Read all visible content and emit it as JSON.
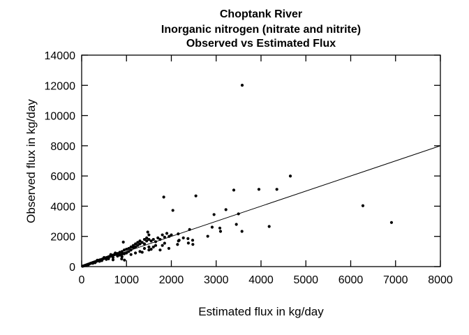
{
  "chart_data": {
    "type": "scatter",
    "title": [
      "Choptank River",
      "Inorganic nitrogen (nitrate and nitrite)",
      "Observed vs Estimated Flux"
    ],
    "xlabel": "Estimated flux in kg/day",
    "ylabel": "Observed flux in kg/day",
    "xlim": [
      0,
      8000
    ],
    "ylim": [
      0,
      14000
    ],
    "xticks": [
      "0",
      "1000",
      "2000",
      "3000",
      "4000",
      "5000",
      "6000",
      "7000",
      "8000"
    ],
    "yticks": [
      "0",
      "2000",
      "4000",
      "6000",
      "8000",
      "10000",
      "12000",
      "14000"
    ],
    "grid": false,
    "point_color": "#000000",
    "reference_line": {
      "x": [
        0,
        8000
      ],
      "y": [
        0,
        8000
      ]
    },
    "points": [
      [
        20,
        25
      ],
      [
        40,
        45
      ],
      [
        60,
        60
      ],
      [
        80,
        90
      ],
      [
        100,
        105
      ],
      [
        120,
        130
      ],
      [
        140,
        150
      ],
      [
        160,
        170
      ],
      [
        180,
        190
      ],
      [
        200,
        220
      ],
      [
        220,
        230
      ],
      [
        240,
        260
      ],
      [
        260,
        280
      ],
      [
        280,
        300
      ],
      [
        300,
        320
      ],
      [
        320,
        340
      ],
      [
        340,
        370
      ],
      [
        360,
        380
      ],
      [
        380,
        400
      ],
      [
        400,
        440
      ],
      [
        420,
        450
      ],
      [
        440,
        470
      ],
      [
        460,
        490
      ],
      [
        480,
        520
      ],
      [
        500,
        540
      ],
      [
        520,
        560
      ],
      [
        540,
        580
      ],
      [
        560,
        600
      ],
      [
        580,
        620
      ],
      [
        600,
        650
      ],
      [
        620,
        670
      ],
      [
        640,
        680
      ],
      [
        660,
        720
      ],
      [
        680,
        740
      ],
      [
        700,
        760
      ],
      [
        720,
        780
      ],
      [
        740,
        800
      ],
      [
        760,
        820
      ],
      [
        780,
        850
      ],
      [
        800,
        870
      ],
      [
        150,
        120
      ],
      [
        250,
        220
      ],
      [
        300,
        260
      ],
      [
        350,
        420
      ],
      [
        400,
        350
      ],
      [
        450,
        400
      ],
      [
        500,
        600
      ],
      [
        550,
        480
      ],
      [
        600,
        520
      ],
      [
        650,
        800
      ],
      [
        700,
        600
      ],
      [
        750,
        900
      ],
      [
        800,
        700
      ],
      [
        850,
        950
      ],
      [
        850,
        760
      ],
      [
        900,
        1000
      ],
      [
        900,
        820
      ],
      [
        950,
        1100
      ],
      [
        950,
        850
      ],
      [
        1000,
        1150
      ],
      [
        1000,
        900
      ],
      [
        1050,
        1200
      ],
      [
        1050,
        1000
      ],
      [
        1100,
        1300
      ],
      [
        1100,
        1100
      ],
      [
        1150,
        1250
      ],
      [
        1150,
        1400
      ],
      [
        1200,
        1500
      ],
      [
        1200,
        1300
      ],
      [
        1250,
        1600
      ],
      [
        1250,
        1400
      ],
      [
        1300,
        1700
      ],
      [
        1300,
        1500
      ],
      [
        1350,
        1600
      ],
      [
        1400,
        1800
      ],
      [
        1400,
        1500
      ],
      [
        1450,
        1900
      ],
      [
        1450,
        1700
      ],
      [
        1500,
        2100
      ],
      [
        1500,
        1800
      ],
      [
        1550,
        1700
      ],
      [
        1600,
        1800
      ],
      [
        1650,
        1650
      ],
      [
        1700,
        1900
      ],
      [
        1750,
        1800
      ],
      [
        1800,
        2100
      ],
      [
        1850,
        1950
      ],
      [
        1900,
        2200
      ],
      [
        1950,
        2000
      ],
      [
        2000,
        2100
      ],
      [
        700,
        450
      ],
      [
        892,
        510
      ],
      [
        900,
        650
      ],
      [
        955,
        430
      ],
      [
        1100,
        800
      ],
      [
        1200,
        900
      ],
      [
        1300,
        1000
      ],
      [
        1350,
        950
      ],
      [
        1500,
        1100
      ],
      [
        1550,
        1150
      ],
      [
        1600,
        1300
      ],
      [
        1650,
        1400
      ],
      [
        1750,
        1100
      ],
      [
        1800,
        1400
      ],
      [
        1850,
        1550
      ],
      [
        1500,
        1300
      ],
      [
        1400,
        1200
      ],
      [
        929,
        1623
      ],
      [
        1474,
        2286
      ],
      [
        1945,
        1205
      ],
      [
        2153,
        2165
      ],
      [
        2174,
        1746
      ],
      [
        2159,
        1700
      ],
      [
        2138,
        1468
      ],
      [
        2268,
        1900
      ],
      [
        2371,
        1854
      ],
      [
        2475,
        1746
      ],
      [
        2380,
        1560
      ],
      [
        2480,
        1470
      ],
      [
        2407,
        2457
      ],
      [
        1831,
        4604
      ],
      [
        2547,
        4682
      ],
      [
        2034,
        3723
      ],
      [
        2812,
        2008
      ],
      [
        2910,
        2611
      ],
      [
        2952,
        3446
      ],
      [
        3082,
        2550
      ],
      [
        3097,
        2333
      ],
      [
        3217,
        3770
      ],
      [
        3393,
        5067
      ],
      [
        3450,
        2797
      ],
      [
        3497,
        3491
      ],
      [
        3575,
        2333
      ],
      [
        3953,
        5115
      ],
      [
        4182,
        2658
      ],
      [
        4353,
        5115
      ],
      [
        4654,
        5995
      ],
      [
        3580,
        12007
      ],
      [
        6272,
        4033
      ],
      [
        6910,
        2920
      ]
    ]
  }
}
